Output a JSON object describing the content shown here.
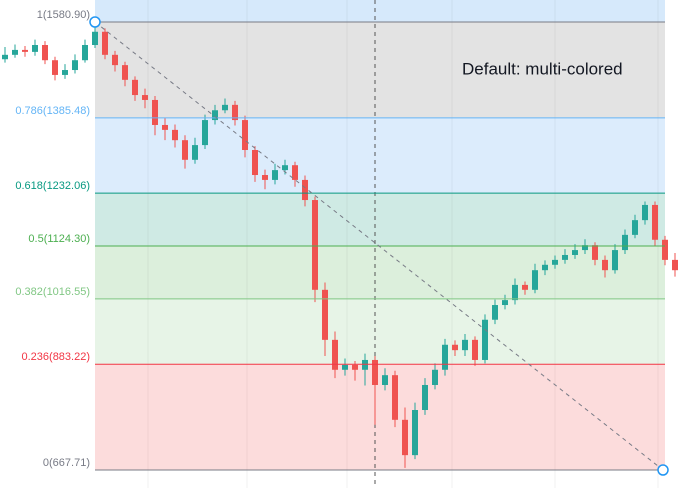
{
  "chart_data": {
    "type": "candlestick",
    "annotation": "Default: multi-colored",
    "up_color": "#26a69a",
    "down_color": "#ef5350",
    "levels": [
      {
        "label": "1(1580.90)",
        "price": 1580.9,
        "color": "#787b86",
        "fill": "#e3e3e3"
      },
      {
        "label": "0.786(1385.48)",
        "price": 1385.48,
        "color": "#64b5f6",
        "fill": "#dcecfc"
      },
      {
        "label": "0.618(1232.06)",
        "price": 1232.06,
        "color": "#089981",
        "fill": "#cfeae4"
      },
      {
        "label": "0.5(1124.30)",
        "price": 1124.3,
        "color": "#4caf50",
        "fill": "#dcefdc"
      },
      {
        "label": "0.382(1016.55)",
        "price": 1016.55,
        "color": "#81c784",
        "fill": "#e7f4e7"
      },
      {
        "label": "0.236(883.22)",
        "price": 883.22,
        "color": "#f23645",
        "fill": "#fcdcdc"
      },
      {
        "label": "0(667.71)",
        "price": 667.71,
        "color": "#787b86"
      }
    ],
    "candles": [
      [
        1505,
        1530,
        1498,
        1514
      ],
      [
        1514,
        1535,
        1508,
        1524
      ],
      [
        1524,
        1532,
        1510,
        1520
      ],
      [
        1520,
        1545,
        1512,
        1534
      ],
      [
        1534,
        1542,
        1495,
        1503
      ],
      [
        1503,
        1510,
        1462,
        1473
      ],
      [
        1473,
        1495,
        1465,
        1483
      ],
      [
        1483,
        1515,
        1476,
        1503
      ],
      [
        1503,
        1545,
        1498,
        1534
      ],
      [
        1534,
        1578,
        1528,
        1561
      ],
      [
        1561,
        1568,
        1505,
        1514
      ],
      [
        1514,
        1522,
        1480,
        1493
      ],
      [
        1493,
        1500,
        1450,
        1463
      ],
      [
        1463,
        1470,
        1420,
        1432
      ],
      [
        1432,
        1445,
        1405,
        1422
      ],
      [
        1422,
        1430,
        1350,
        1371
      ],
      [
        1371,
        1385,
        1340,
        1361
      ],
      [
        1361,
        1372,
        1325,
        1340
      ],
      [
        1340,
        1350,
        1282,
        1300
      ],
      [
        1300,
        1345,
        1292,
        1330
      ],
      [
        1330,
        1392,
        1322,
        1381
      ],
      [
        1381,
        1412,
        1372,
        1401
      ],
      [
        1401,
        1425,
        1395,
        1412
      ],
      [
        1412,
        1420,
        1370,
        1381
      ],
      [
        1381,
        1390,
        1305,
        1320
      ],
      [
        1320,
        1328,
        1255,
        1269
      ],
      [
        1269,
        1280,
        1240,
        1259
      ],
      [
        1259,
        1292,
        1250,
        1279
      ],
      [
        1279,
        1300,
        1270,
        1289
      ],
      [
        1289,
        1296,
        1245,
        1259
      ],
      [
        1259,
        1268,
        1205,
        1218
      ],
      [
        1218,
        1225,
        1010,
        1035
      ],
      [
        1035,
        1050,
        900,
        933
      ],
      [
        933,
        950,
        855,
        872
      ],
      [
        872,
        895,
        860,
        882
      ],
      [
        882,
        890,
        850,
        872
      ],
      [
        872,
        905,
        840,
        892
      ],
      [
        892,
        900,
        760,
        841
      ],
      [
        841,
        875,
        830,
        861
      ],
      [
        861,
        870,
        755,
        770
      ],
      [
        770,
        795,
        672,
        698
      ],
      [
        698,
        805,
        690,
        790
      ],
      [
        790,
        855,
        780,
        841
      ],
      [
        841,
        885,
        832,
        872
      ],
      [
        872,
        935,
        860,
        923
      ],
      [
        923,
        932,
        900,
        912
      ],
      [
        912,
        945,
        900,
        933
      ],
      [
        933,
        940,
        880,
        892
      ],
      [
        892,
        985,
        885,
        974
      ],
      [
        974,
        1015,
        965,
        1004
      ],
      [
        1004,
        1025,
        995,
        1014
      ],
      [
        1014,
        1058,
        1005,
        1045
      ],
      [
        1045,
        1052,
        1025,
        1035
      ],
      [
        1035,
        1088,
        1028,
        1075
      ],
      [
        1075,
        1095,
        1065,
        1086
      ],
      [
        1086,
        1105,
        1078,
        1096
      ],
      [
        1096,
        1118,
        1088,
        1106
      ],
      [
        1106,
        1128,
        1098,
        1116
      ],
      [
        1116,
        1138,
        1108,
        1126
      ],
      [
        1126,
        1132,
        1085,
        1096
      ],
      [
        1096,
        1105,
        1060,
        1075
      ],
      [
        1075,
        1128,
        1068,
        1116
      ],
      [
        1116,
        1158,
        1108,
        1147
      ],
      [
        1147,
        1188,
        1140,
        1177
      ],
      [
        1177,
        1215,
        1168,
        1208
      ],
      [
        1208,
        1215,
        1125,
        1137
      ],
      [
        1137,
        1145,
        1085,
        1096
      ],
      [
        1096,
        1110,
        1062,
        1075
      ]
    ]
  }
}
